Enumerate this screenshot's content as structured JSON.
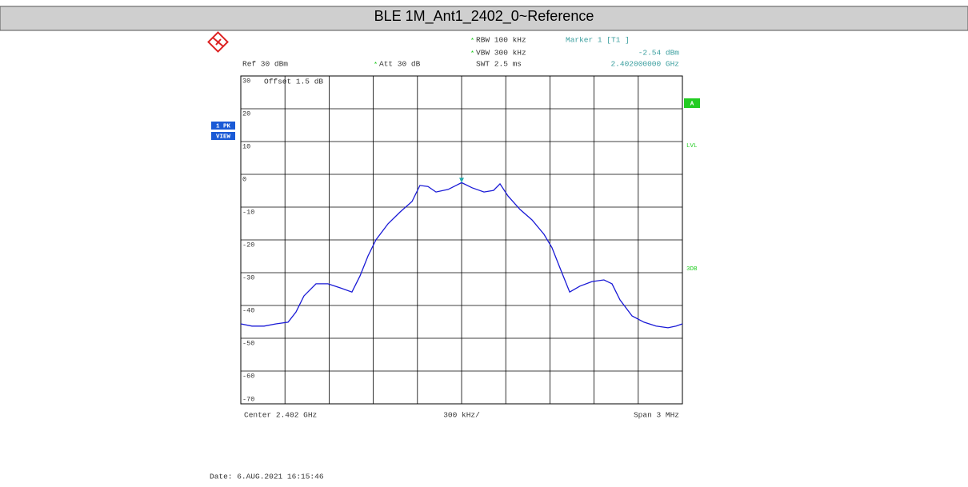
{
  "chart_data": {
    "type": "line",
    "title": "BLE 1M_Ant1_2402_0~Reference",
    "x": [
      2.4005,
      2.400576,
      2.400658,
      2.400739,
      2.400821,
      2.400875,
      2.400929,
      2.401011,
      2.401092,
      2.401174,
      2.401255,
      2.40131,
      2.401364,
      2.401418,
      2.4015,
      2.401582,
      2.401663,
      2.401717,
      2.401772,
      2.401826,
      2.401908,
      2.401962,
      2.402,
      2.402071,
      2.402152,
      2.402217,
      2.402261,
      2.402315,
      2.402397,
      2.402478,
      2.40256,
      2.402614,
      2.402668,
      2.402734,
      2.402804,
      2.402886,
      2.402967,
      2.403022,
      2.403076,
      2.403158,
      2.403239,
      2.403321,
      2.403402,
      2.403457,
      2.4035
    ],
    "series": [
      {
        "color": "#1a1ad6",
        "values": [
          -45.6,
          -46.3,
          -46.3,
          -45.6,
          -45.1,
          -42,
          -37.1,
          -33.4,
          -33.4,
          -34.6,
          -35.9,
          -31,
          -24.9,
          -20,
          -15.1,
          -11.5,
          -8.3,
          -3.4,
          -3.7,
          -5.4,
          -4.6,
          -3.4,
          -2.54,
          -4.1,
          -5.4,
          -4.9,
          -2.9,
          -6.6,
          -10.7,
          -13.9,
          -18.3,
          -22.4,
          -28.5,
          -35.9,
          -34.1,
          -32.7,
          -32.2,
          -33.4,
          -38.3,
          -43.2,
          -45.1,
          -46.3,
          -46.8,
          -46.3,
          -45.6
        ]
      }
    ],
    "xlim": [
      2.4005,
      2.4035
    ],
    "ylim": [
      -70,
      30
    ],
    "yticks": [
      30,
      20,
      10,
      0,
      -10,
      -20,
      -30,
      -40,
      -50,
      -60,
      -70
    ],
    "grid": true,
    "annotations": {
      "ref": "Ref  30 dBm",
      "att": "Att  30 dB",
      "rbw": "RBW 100 kHz",
      "vbw": "VBW 300 kHz",
      "swt": "SWT 2.5 ms",
      "marker": "Marker 1 [T1 ]",
      "marker_level": "-2.54 dBm",
      "marker_freq": "2.402000000 GHz",
      "offset": "Offset  1.5 dB",
      "trace_mode": "1 PK",
      "view": "VIEW",
      "a": "A",
      "lvl": "LVL",
      "db3": "3DB",
      "center": "Center  2.402 GHz",
      "per_div": "300 kHz/",
      "span": "Span  3 MHz",
      "date": "Date: 6.AUG.2021  16:15:46"
    }
  }
}
